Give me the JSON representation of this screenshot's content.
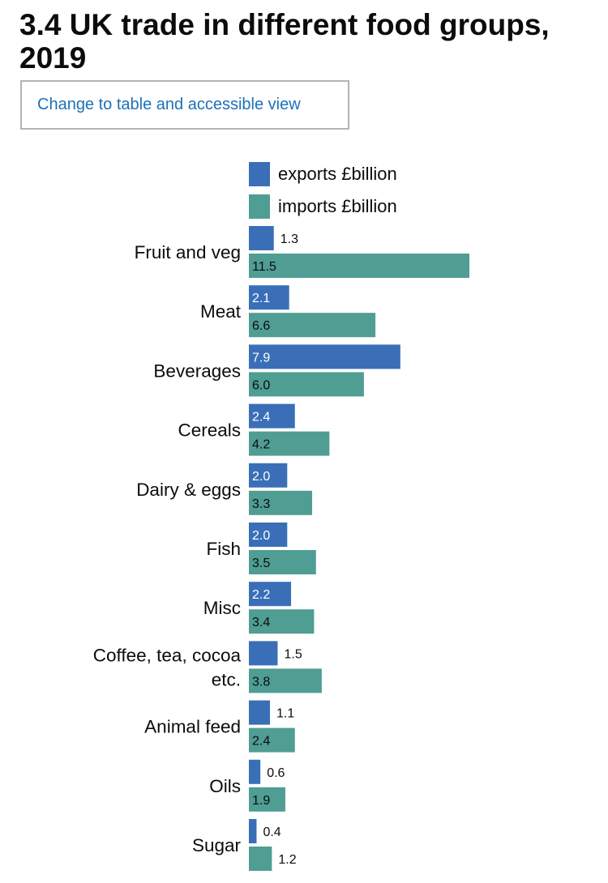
{
  "page": {
    "title": "3.4 UK trade in different food groups, 2019",
    "toggle_label": "Change to table and accessible view"
  },
  "colors": {
    "exports": "#3a6fb8",
    "imports": "#4f9d93",
    "text": "#0b0c0c",
    "link": "#1d70b8"
  },
  "chart_data": {
    "type": "bar",
    "orientation": "horizontal",
    "title": "3.4 UK trade in different food groups, 2019",
    "xlabel": "",
    "ylabel": "",
    "categories": [
      "Fruit and veg",
      "Meat",
      "Beverages",
      "Cereals",
      "Dairy & eggs",
      "Fish",
      "Misc",
      "Coffee, tea, cocoa etc.",
      "Animal feed",
      "Oils",
      "Sugar"
    ],
    "category_lines": [
      [
        "Fruit and veg"
      ],
      [
        "Meat"
      ],
      [
        "Beverages"
      ],
      [
        "Cereals"
      ],
      [
        "Dairy & eggs"
      ],
      [
        "Fish"
      ],
      [
        "Misc"
      ],
      [
        "Coffee, tea, cocoa",
        "etc."
      ],
      [
        "Animal feed"
      ],
      [
        "Oils"
      ],
      [
        "Sugar"
      ]
    ],
    "series": [
      {
        "name": "exports £billion",
        "values": [
          1.3,
          2.1,
          7.9,
          2.4,
          2.0,
          2.0,
          2.2,
          1.5,
          1.1,
          0.6,
          0.4
        ],
        "labels": [
          "1.3",
          "2.1",
          "7.9",
          "2.4",
          "2.0",
          "2.0",
          "2.2",
          "1.5",
          "1.1",
          "0.6",
          "0.4"
        ]
      },
      {
        "name": "imports £billion",
        "values": [
          11.5,
          6.6,
          6.0,
          4.2,
          3.3,
          3.5,
          3.4,
          3.8,
          2.4,
          1.9,
          1.2
        ],
        "labels": [
          "11.5",
          "6.6",
          "6.0",
          "4.2",
          "3.3",
          "3.5",
          "3.4",
          "3.8",
          "2.4",
          "1.9",
          "1.2"
        ]
      }
    ],
    "xlim": [
      0,
      11.5
    ],
    "grid": false,
    "legend": "top"
  }
}
